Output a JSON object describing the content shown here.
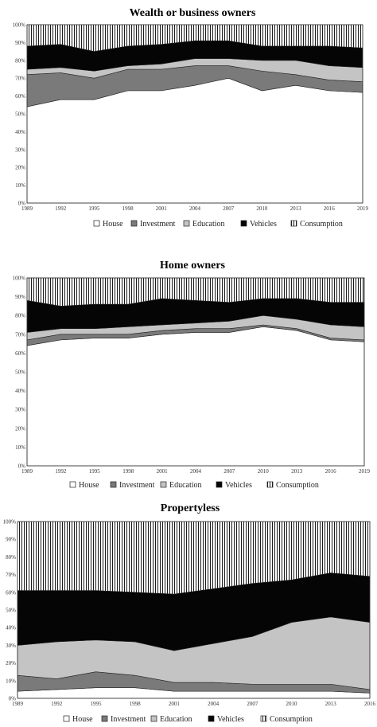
{
  "figure": {
    "series_legend": [
      "House",
      "Investment",
      "Education",
      "Vehicles",
      "Consumption"
    ]
  },
  "chart_data": [
    {
      "type": "area",
      "stacked": true,
      "percent": true,
      "title": "Wealth or business owners",
      "x": [
        "1989",
        "1992",
        "1995",
        "1998",
        "2001",
        "2004",
        "2007",
        "2010",
        "2013",
        "2016",
        "2019"
      ],
      "ylim": [
        0,
        100
      ],
      "yticks": [
        "0%",
        "10%",
        "20%",
        "30%",
        "40%",
        "50%",
        "60%",
        "70%",
        "80%",
        "90%",
        "100%"
      ],
      "legend_position": "bottom",
      "series": [
        {
          "name": "House",
          "pattern": "white",
          "values": [
            54,
            58,
            58,
            63,
            63,
            66,
            70,
            63,
            66,
            63,
            62
          ]
        },
        {
          "name": "Investment",
          "pattern": "dark-gray",
          "values": [
            18,
            15,
            12,
            12,
            12,
            11,
            7,
            11,
            6,
            6,
            6
          ]
        },
        {
          "name": "Education",
          "pattern": "light-gray",
          "values": [
            3,
            3,
            4,
            2,
            3,
            4,
            4,
            6,
            8,
            8,
            8
          ]
        },
        {
          "name": "Vehicles",
          "pattern": "black",
          "values": [
            13,
            13,
            11,
            11,
            11,
            10,
            10,
            8,
            8,
            11,
            11
          ]
        },
        {
          "name": "Consumption",
          "pattern": "vertical-lines",
          "values": [
            12,
            11,
            15,
            12,
            11,
            9,
            9,
            12,
            12,
            12,
            13
          ]
        }
      ]
    },
    {
      "type": "area",
      "stacked": true,
      "percent": true,
      "title": "Home owners",
      "x": [
        "1989",
        "1992",
        "1995",
        "1998",
        "2001",
        "2004",
        "2007",
        "2010",
        "2013",
        "2016",
        "2019"
      ],
      "ylim": [
        0,
        100
      ],
      "yticks": [
        "0%",
        "10%",
        "20%",
        "30%",
        "40%",
        "50%",
        "60%",
        "70%",
        "80%",
        "90%",
        "100%"
      ],
      "legend_position": "bottom",
      "series": [
        {
          "name": "House",
          "pattern": "white",
          "values": [
            64,
            67,
            68,
            68,
            70,
            71,
            71,
            74,
            72,
            67,
            66
          ]
        },
        {
          "name": "Investment",
          "pattern": "dark-gray",
          "values": [
            3,
            3,
            2,
            2,
            2,
            2,
            2,
            1,
            1,
            1,
            1
          ]
        },
        {
          "name": "Education",
          "pattern": "light-gray",
          "values": [
            4,
            3,
            3,
            4,
            3,
            3,
            4,
            5,
            5,
            7,
            7
          ]
        },
        {
          "name": "Vehicles",
          "pattern": "black",
          "values": [
            17,
            12,
            13,
            12,
            14,
            12,
            10,
            9,
            11,
            12,
            13
          ]
        },
        {
          "name": "Consumption",
          "pattern": "vertical-lines",
          "values": [
            12,
            15,
            14,
            14,
            11,
            12,
            13,
            11,
            11,
            13,
            13
          ]
        }
      ]
    },
    {
      "type": "area",
      "stacked": true,
      "percent": true,
      "title": "Propertyless",
      "x": [
        "1989",
        "1992",
        "1995",
        "1998",
        "2001",
        "2004",
        "2007",
        "2010",
        "2013",
        "2016"
      ],
      "ylim": [
        0,
        100
      ],
      "yticks": [
        "0%",
        "10%",
        "20%",
        "30%",
        "40%",
        "50%",
        "60%",
        "70%",
        "80%",
        "90%",
        "100%"
      ],
      "legend_position": "bottom",
      "series": [
        {
          "name": "House",
          "pattern": "white",
          "values": [
            4,
            5,
            6,
            6,
            4,
            4,
            4,
            4,
            4,
            3
          ]
        },
        {
          "name": "Investment",
          "pattern": "dark-gray",
          "values": [
            9,
            6,
            9,
            7,
            5,
            5,
            4,
            4,
            4,
            2
          ]
        },
        {
          "name": "Education",
          "pattern": "light-gray",
          "values": [
            17,
            21,
            18,
            19,
            18,
            22,
            27,
            35,
            38,
            38
          ]
        },
        {
          "name": "Vehicles",
          "pattern": "black",
          "values": [
            31,
            29,
            28,
            28,
            32,
            31,
            30,
            24,
            25,
            26
          ]
        },
        {
          "name": "Consumption",
          "pattern": "vertical-lines",
          "values": [
            39,
            39,
            39,
            40,
            41,
            38,
            35,
            33,
            29,
            31
          ]
        }
      ]
    }
  ]
}
